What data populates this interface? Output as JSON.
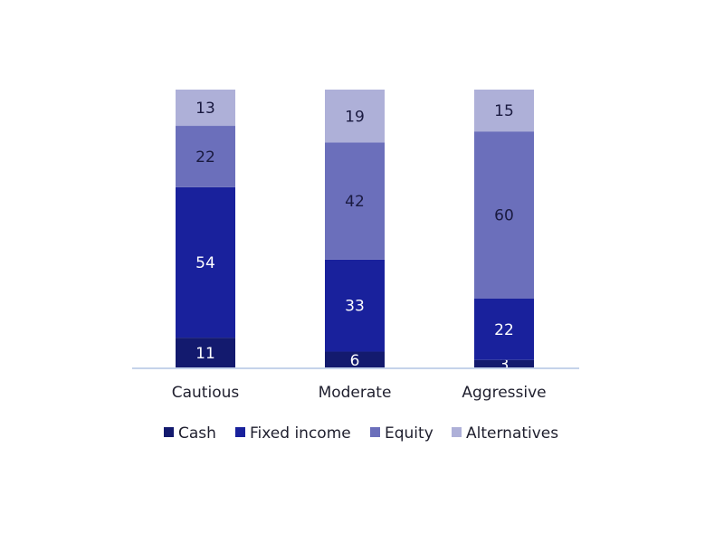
{
  "chart_data": {
    "type": "bar",
    "stacked": true,
    "categories": [
      "Cautious",
      "Moderate",
      "Aggressive"
    ],
    "series": [
      {
        "name": "Cash",
        "values": [
          11,
          6,
          3
        ],
        "color": "#131a6e",
        "label_color": "#ffffff"
      },
      {
        "name": "Fixed income",
        "values": [
          54,
          33,
          22
        ],
        "color": "#19219c",
        "label_color": "#ffffff"
      },
      {
        "name": "Equity",
        "values": [
          22,
          42,
          60
        ],
        "color": "#6b6fbb",
        "label_color": "#1a1a40"
      },
      {
        "name": "Alternatives",
        "values": [
          13,
          19,
          15
        ],
        "color": "#aeb0d8",
        "label_color": "#1a1a40"
      }
    ],
    "ylim": [
      0,
      100
    ],
    "grid": false,
    "legend_position": "bottom"
  }
}
